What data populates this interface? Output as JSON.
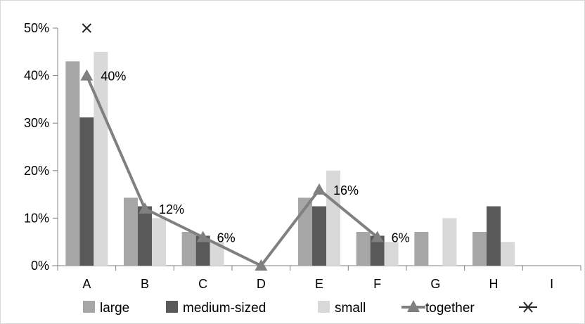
{
  "chart_data": {
    "type": "bar",
    "categories": [
      "A",
      "B",
      "C",
      "D",
      "E",
      "F",
      "G",
      "H",
      "I"
    ],
    "series": [
      {
        "name": "large",
        "kind": "bar",
        "color": "#a6a6a6",
        "values": [
          43,
          14.3,
          7.1,
          0,
          14.3,
          7.1,
          7.1,
          7.1,
          0
        ]
      },
      {
        "name": "medium-sized",
        "kind": "bar",
        "color": "#595959",
        "values": [
          31.2,
          12.5,
          6.3,
          0,
          12.5,
          6.3,
          0,
          12.5,
          0
        ]
      },
      {
        "name": "small",
        "kind": "bar",
        "color": "#d9d9d9",
        "values": [
          45,
          10,
          5,
          0,
          20,
          5,
          10,
          5,
          0
        ]
      },
      {
        "name": "together",
        "kind": "line",
        "color": "#808080",
        "marker": "triangle",
        "values": [
          40,
          12,
          6,
          0,
          16,
          6,
          null,
          null,
          null
        ],
        "labels": [
          "40%",
          "12%",
          "6%",
          "",
          "16%",
          "6%",
          "",
          "",
          ""
        ]
      },
      {
        "name": "",
        "kind": "line",
        "color": "#262626",
        "marker": "x",
        "values": [
          50,
          null,
          null,
          null,
          null,
          null,
          null,
          null,
          null
        ]
      }
    ],
    "y_ticks": [
      "0%",
      "10%",
      "20%",
      "30%",
      "40%",
      "50%"
    ],
    "ylim": [
      0,
      50
    ],
    "grid": false,
    "legend_position": "bottom"
  }
}
